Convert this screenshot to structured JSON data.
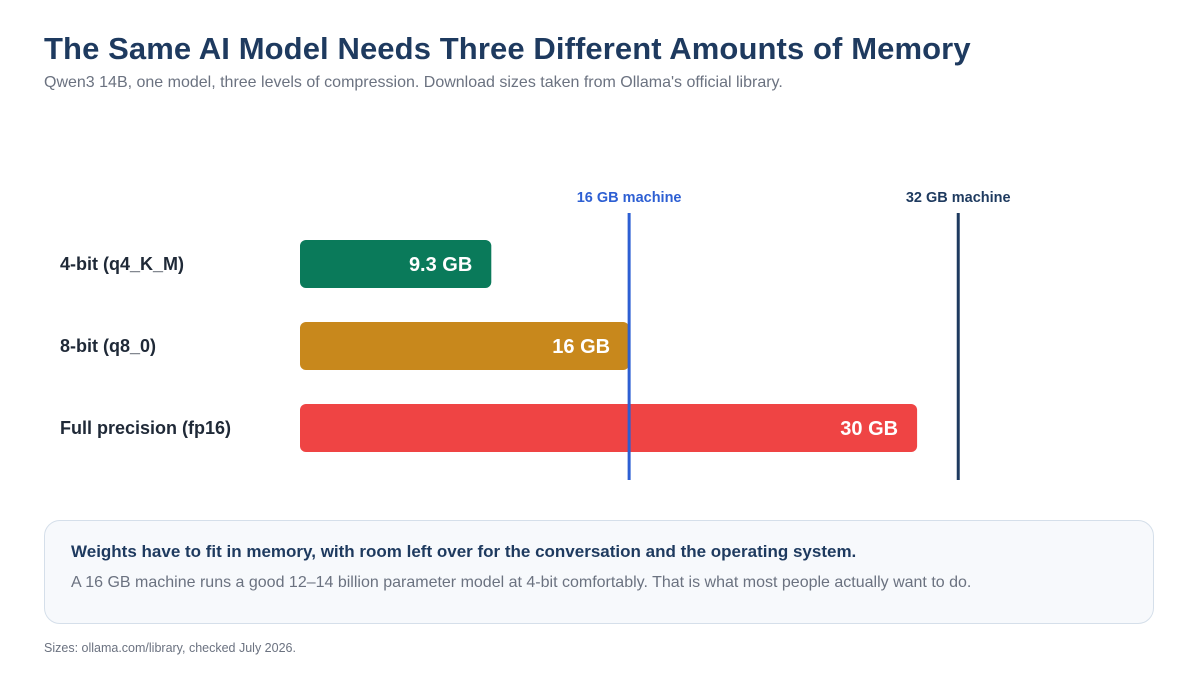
{
  "header": {
    "title": "The Same AI Model Needs Three Different Amounts of Memory",
    "subtitle": "Qwen3 14B, one model, three levels of compression. Download sizes taken from Ollama's official library."
  },
  "chart_data": {
    "type": "bar",
    "orientation": "horizontal",
    "categories": [
      "4-bit (q4_K_M)",
      "8-bit (q8_0)",
      "Full precision (fp16)"
    ],
    "values": [
      9.3,
      16,
      30
    ],
    "value_labels": [
      "9.3 GB",
      "16 GB",
      "30 GB"
    ],
    "colors": [
      "#0a7a5a",
      "#c8881c",
      "#ef4444"
    ],
    "xlim": [
      0,
      30.8
    ],
    "reference_lines": [
      {
        "label": "16 GB machine",
        "value": 16,
        "color": "#2d5fd3"
      },
      {
        "label": "32 GB machine",
        "value": 32,
        "color": "#1e3a5f"
      }
    ],
    "grid": false,
    "legend": "none"
  },
  "callout": {
    "heading": "Weights have to fit in memory, with room left over for the conversation and the operating system.",
    "body": "A 16 GB machine runs a good 12–14 billion parameter model at 4-bit comfortably. That is what most people actually want to do."
  },
  "footer": {
    "source": "Sizes: ollama.com/library, checked July 2026."
  }
}
